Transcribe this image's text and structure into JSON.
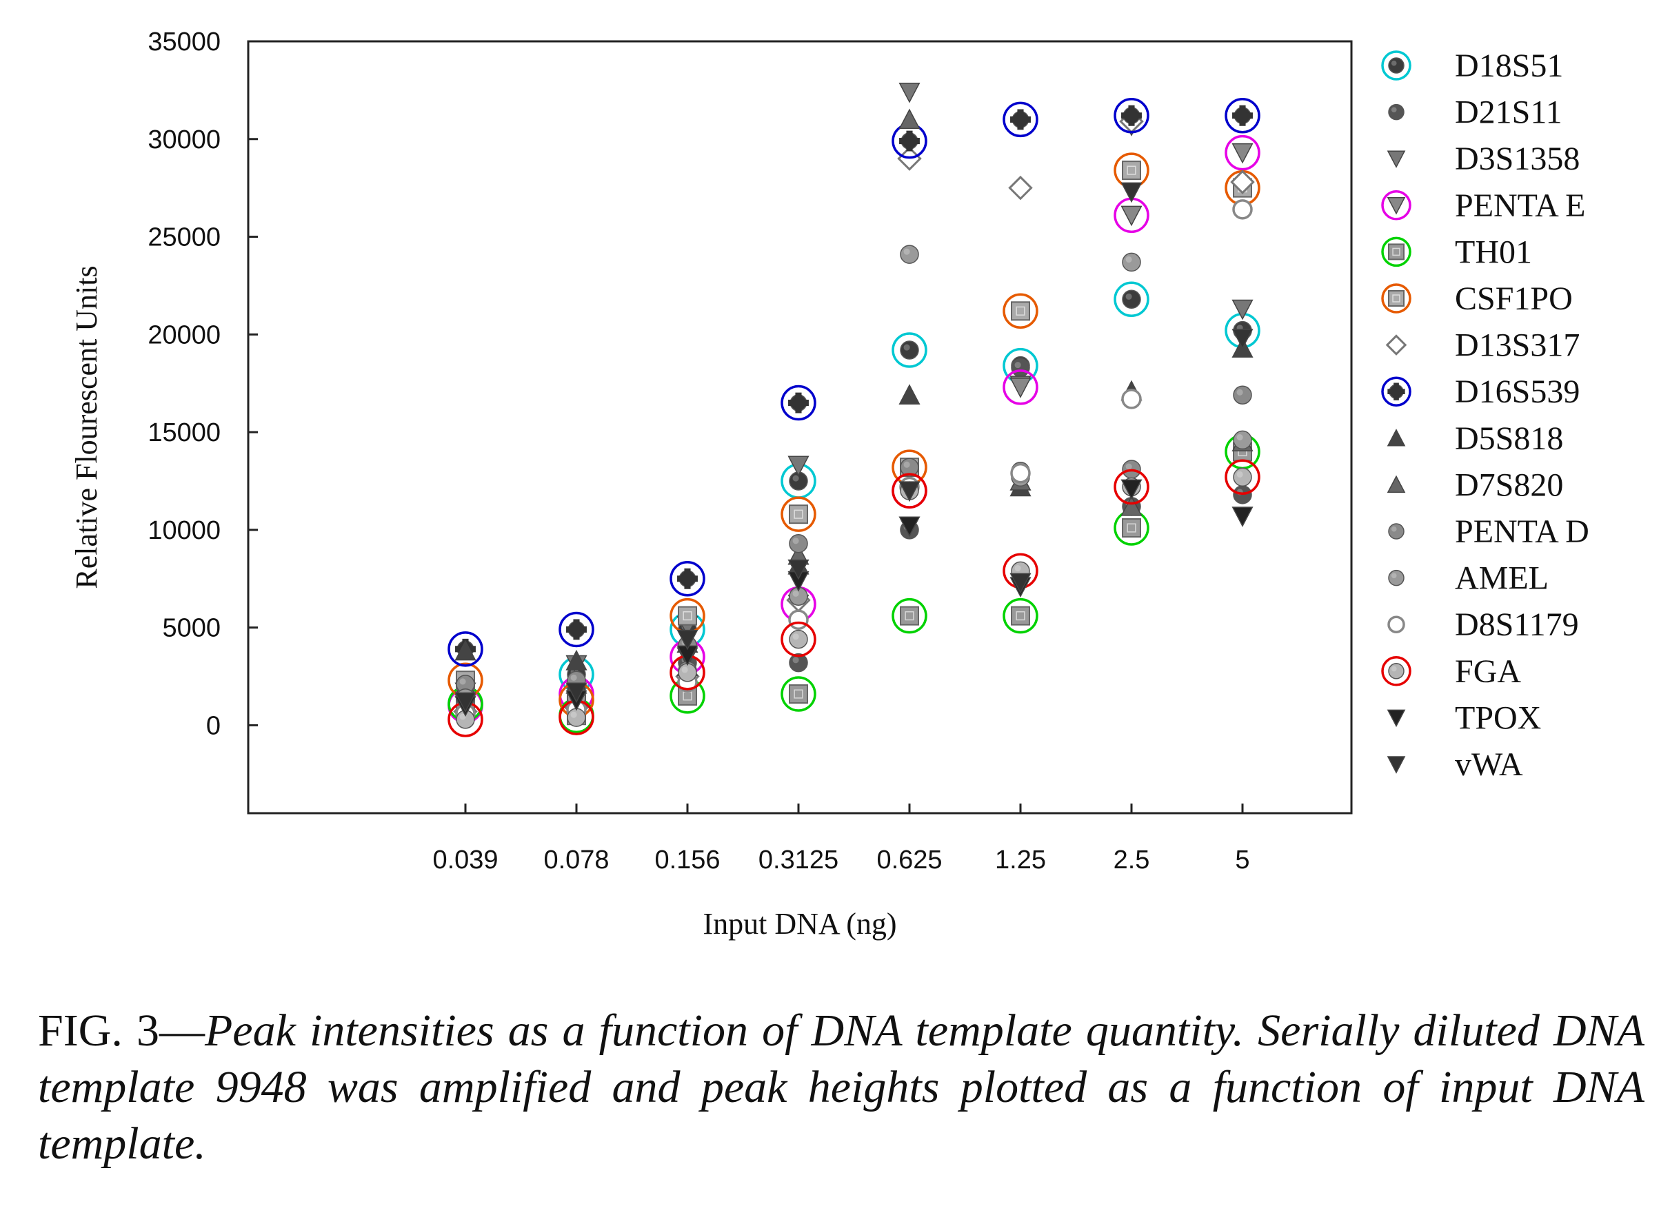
{
  "chart_data": {
    "type": "scatter",
    "xlabel": "Input DNA (ng)",
    "ylabel": "Relative Flourescent Units",
    "categories": [
      "0.039",
      "0.078",
      "0.156",
      "0.3125",
      "0.625",
      "1.25",
      "2.5",
      "5"
    ],
    "ylim": [
      -4500,
      35000
    ],
    "yticks": [
      0,
      5000,
      10000,
      15000,
      20000,
      25000,
      30000,
      35000
    ],
    "legend_position": "right",
    "grid": false,
    "series": [
      {
        "name": "D18S51",
        "marker": "circle",
        "fill": "#3c3c3c",
        "ring": "#00c8d2",
        "values": [
          1100,
          2600,
          4900,
          12500,
          19200,
          18400,
          21800,
          20200
        ]
      },
      {
        "name": "D21S11",
        "marker": "circle",
        "fill": "#555555",
        "ring": null,
        "values": [
          1300,
          1800,
          3200,
          3200,
          10000,
          18300,
          11200,
          11800
        ]
      },
      {
        "name": "D3S1358",
        "marker": "triangle-down",
        "fill": "#777777",
        "ring": null,
        "values": [
          1700,
          3100,
          5100,
          13300,
          32400,
          17400,
          30700,
          21300
        ]
      },
      {
        "name": "PENTA E",
        "marker": "triangle-down",
        "fill": "#888888",
        "ring": "#e600e6",
        "values": [
          1000,
          1600,
          3500,
          6200,
          12000,
          17300,
          26100,
          29300
        ]
      },
      {
        "name": "TH01",
        "marker": "square",
        "fill": "#999999",
        "ring": "#00d200",
        "values": [
          1100,
          500,
          1500,
          1600,
          5600,
          5600,
          10100,
          14000
        ]
      },
      {
        "name": "CSF1PO",
        "marker": "square",
        "fill": "#aaaaaa",
        "ring": "#e65a00",
        "values": [
          2300,
          1300,
          5600,
          10800,
          13200,
          21200,
          28400,
          27500
        ]
      },
      {
        "name": "D13S317",
        "marker": "diamond-open",
        "fill": "#ffffff",
        "ring": null,
        "values": [
          700,
          900,
          2500,
          6400,
          29000,
          27500,
          30900,
          27800
        ]
      },
      {
        "name": "D16S539",
        "marker": "plus",
        "fill": "#333333",
        "ring": "#0000cc",
        "values": [
          3900,
          4900,
          7500,
          16500,
          29900,
          31000,
          31200,
          31200
        ]
      },
      {
        "name": "D5S818",
        "marker": "triangle-up",
        "fill": "#444444",
        "ring": null,
        "values": [
          3800,
          3300,
          4200,
          8200,
          16900,
          12200,
          17100,
          19300
        ]
      },
      {
        "name": "D7S820",
        "marker": "triangle-up",
        "fill": "#666666",
        "ring": null,
        "values": [
          2000,
          2100,
          3000,
          8700,
          31000,
          12500,
          11200,
          14500
        ]
      },
      {
        "name": "PENTA D",
        "marker": "circle",
        "fill": "#8a8a8a",
        "ring": null,
        "values": [
          2100,
          2300,
          4100,
          9300,
          13200,
          13000,
          13100,
          16900
        ]
      },
      {
        "name": "AMEL",
        "marker": "circle",
        "fill": "#9a9a9a",
        "ring": null,
        "values": [
          1400,
          1400,
          2800,
          6600,
          24100,
          12700,
          23700,
          14600
        ]
      },
      {
        "name": "D8S1179",
        "marker": "circle-open",
        "fill": "#ffffff",
        "ring": null,
        "values": [
          600,
          800,
          2200,
          5400,
          12200,
          12900,
          16700,
          26400
        ]
      },
      {
        "name": "FGA",
        "marker": "circle",
        "fill": "#b5b5b5",
        "ring": "#e60000",
        "values": [
          300,
          400,
          2700,
          4400,
          12000,
          7900,
          12200,
          12700
        ]
      },
      {
        "name": "TPOX",
        "marker": "triangle-down",
        "fill": "#222222",
        "ring": null,
        "values": [
          1000,
          1300,
          3600,
          7400,
          10200,
          7100,
          12100,
          10700
        ]
      },
      {
        "name": "vWA",
        "marker": "triangle-down",
        "fill": "#333333",
        "ring": null,
        "values": [
          1200,
          1700,
          4400,
          8000,
          12000,
          7300,
          27300,
          19800
        ]
      }
    ]
  },
  "caption": {
    "prefix": "FIG. 3—",
    "text": "Peak intensities as a function of DNA template quantity. Serially diluted DNA template 9948 was amplified and peak heights plotted as a function of input DNA template."
  }
}
